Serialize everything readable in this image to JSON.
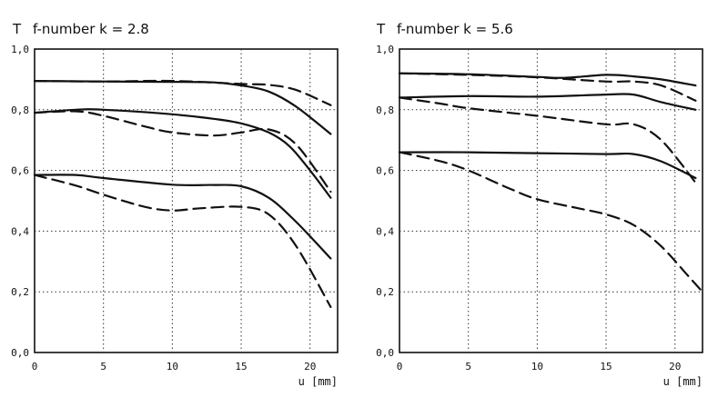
{
  "chart_data": [
    {
      "type": "line",
      "title": "f-number k = 2.8",
      "ylabel": "T",
      "xlabel": "u [mm]",
      "xlim": [
        0,
        22
      ],
      "ylim": [
        0,
        1.0
      ],
      "xticks": [
        "0",
        "5",
        "10",
        "15",
        "20"
      ],
      "yticks": [
        "0,0",
        "0,2",
        "0,4",
        "0,6",
        "0,8",
        "1,0"
      ],
      "grid": "dotted",
      "series": [
        {
          "style": "solid",
          "x": [
            0,
            5,
            10,
            13,
            15,
            17,
            19,
            21.5
          ],
          "y": [
            0.895,
            0.893,
            0.892,
            0.89,
            0.88,
            0.86,
            0.81,
            0.72
          ]
        },
        {
          "style": "dashed",
          "x": [
            0,
            5,
            10,
            15,
            17,
            19,
            21.5
          ],
          "y": [
            0.895,
            0.893,
            0.895,
            0.885,
            0.882,
            0.865,
            0.815
          ]
        },
        {
          "style": "solid",
          "x": [
            0,
            3,
            5,
            10,
            13,
            15,
            17,
            18.5,
            20,
            21.5
          ],
          "y": [
            0.79,
            0.8,
            0.8,
            0.785,
            0.77,
            0.755,
            0.725,
            0.68,
            0.6,
            0.51
          ]
        },
        {
          "style": "dashed",
          "x": [
            0,
            3,
            5,
            8,
            10,
            13,
            15,
            17,
            19,
            21.5
          ],
          "y": [
            0.79,
            0.795,
            0.78,
            0.745,
            0.725,
            0.715,
            0.725,
            0.735,
            0.685,
            0.53
          ]
        },
        {
          "style": "solid",
          "x": [
            0,
            3,
            5,
            10,
            13,
            15,
            17,
            19,
            21.5
          ],
          "y": [
            0.585,
            0.585,
            0.575,
            0.553,
            0.552,
            0.548,
            0.51,
            0.43,
            0.31
          ]
        },
        {
          "style": "dashed",
          "x": [
            0,
            3,
            5,
            8,
            10,
            12,
            15,
            17,
            19,
            21.5
          ],
          "y": [
            0.585,
            0.55,
            0.52,
            0.48,
            0.468,
            0.475,
            0.48,
            0.455,
            0.35,
            0.15
          ]
        }
      ]
    },
    {
      "type": "line",
      "title": "f-number k = 5.6",
      "ylabel": "T",
      "xlabel": "u [mm]",
      "xlim": [
        0,
        22
      ],
      "ylim": [
        0,
        1.0
      ],
      "xticks": [
        "0",
        "5",
        "10",
        "15",
        "20"
      ],
      "yticks": [
        "0,0",
        "0,2",
        "0,4",
        "0,6",
        "0,8",
        "1,0"
      ],
      "grid": "dotted",
      "series": [
        {
          "style": "solid",
          "x": [
            0,
            5,
            10,
            12,
            15,
            17,
            19,
            21.5
          ],
          "y": [
            0.92,
            0.917,
            0.908,
            0.905,
            0.915,
            0.91,
            0.9,
            0.88
          ]
        },
        {
          "style": "dashed",
          "x": [
            0,
            5,
            10,
            15,
            17,
            19,
            21.5
          ],
          "y": [
            0.92,
            0.915,
            0.907,
            0.893,
            0.893,
            0.88,
            0.83
          ]
        },
        {
          "style": "solid",
          "x": [
            0,
            5,
            10,
            15,
            17,
            19,
            21.5
          ],
          "y": [
            0.84,
            0.845,
            0.843,
            0.85,
            0.85,
            0.825,
            0.8
          ]
        },
        {
          "style": "dashed",
          "x": [
            0,
            3,
            5,
            10,
            15,
            17,
            19,
            21.5
          ],
          "y": [
            0.84,
            0.82,
            0.805,
            0.78,
            0.752,
            0.752,
            0.7,
            0.56
          ]
        },
        {
          "style": "solid",
          "x": [
            0,
            5,
            10,
            15,
            17,
            19,
            21.5
          ],
          "y": [
            0.66,
            0.66,
            0.657,
            0.654,
            0.654,
            0.63,
            0.575
          ]
        },
        {
          "style": "dashed",
          "x": [
            0,
            3,
            5,
            8,
            10,
            13,
            15,
            17,
            19,
            21,
            22
          ],
          "y": [
            0.66,
            0.63,
            0.6,
            0.54,
            0.505,
            0.475,
            0.455,
            0.42,
            0.35,
            0.25,
            0.2
          ]
        }
      ]
    }
  ]
}
